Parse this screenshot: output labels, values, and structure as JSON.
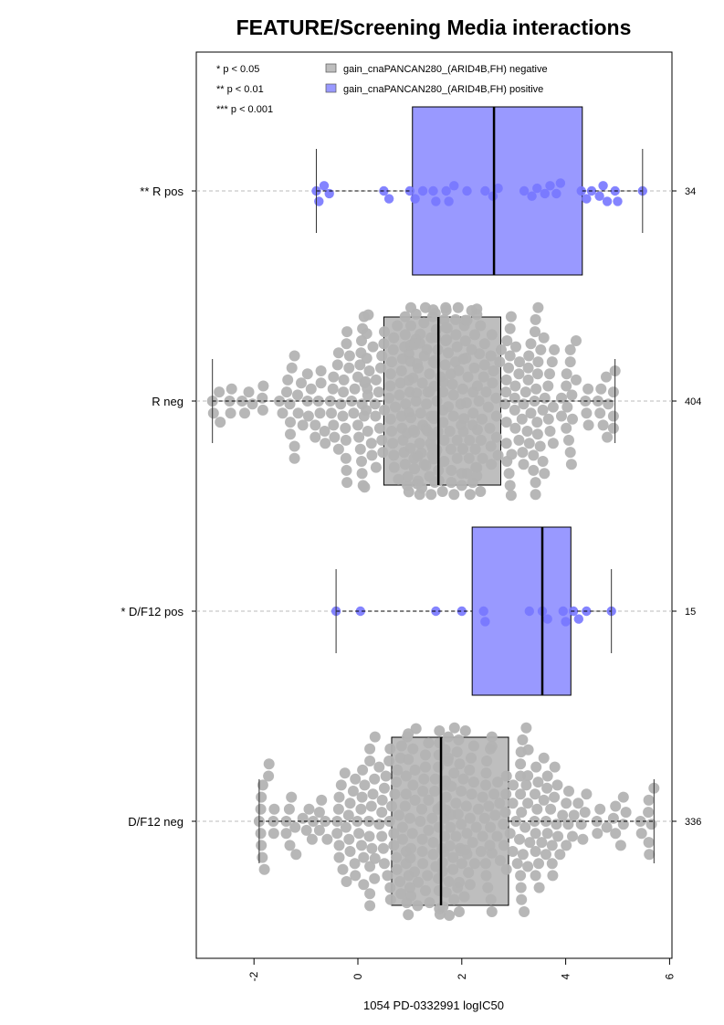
{
  "chart_data": {
    "type": "beeswarm-boxplot",
    "orientation": "horizontal",
    "title": "FEATURE/Screening Media interactions",
    "xlabel": "1054 PD-0332991 logIC50",
    "xlim": [
      -2.9,
      6.1
    ],
    "xticks": [
      -2,
      0,
      2,
      4,
      6
    ],
    "xtick_labels": [
      "-2",
      "0",
      "2",
      "4",
      "6"
    ],
    "colors": {
      "negative": "#bebebe",
      "positive": "#9999ff",
      "neg_point": "#b3b3b3",
      "pos_point": "#7777ff"
    },
    "significance_legend": [
      "* p < 0.05",
      "** p < 0.01",
      "*** p < 0.001"
    ],
    "legend": [
      {
        "label": "gain_cnaPANCAN280_(ARID4B,FH) negative",
        "color": "#bebebe"
      },
      {
        "label": "gain_cnaPANCAN280_(ARID4B,FH) positive",
        "color": "#9999ff"
      }
    ],
    "groups": [
      {
        "label": "** R pos",
        "n": "34",
        "kind": "positive",
        "stats": {
          "whisker_low": -0.8,
          "q1": 1.05,
          "median": 2.62,
          "q3": 4.32,
          "whisker_high": 5.48
        },
        "points": [
          -0.8,
          -0.75,
          -0.65,
          -0.55,
          0.5,
          0.6,
          1.0,
          1.1,
          1.25,
          1.45,
          1.5,
          1.7,
          1.75,
          1.85,
          2.1,
          2.45,
          2.6,
          2.7,
          3.2,
          3.35,
          3.45,
          3.6,
          3.7,
          3.82,
          3.9,
          4.3,
          4.4,
          4.5,
          4.65,
          4.72,
          4.8,
          4.95,
          5.0,
          5.48
        ]
      },
      {
        "label": "R neg",
        "n": "404",
        "kind": "negative",
        "stats": {
          "whisker_low": -2.8,
          "q1": 0.5,
          "median": 1.55,
          "q3": 2.75,
          "whisker_high": 4.95
        },
        "box_height_ratio": 0.67
      },
      {
        "label": "* D/F12 pos",
        "n": "15",
        "kind": "positive",
        "stats": {
          "whisker_low": -0.42,
          "q1": 2.2,
          "median": 3.55,
          "q3": 4.1,
          "whisker_high": 4.88
        },
        "points": [
          -0.42,
          0.05,
          1.5,
          2.0,
          2.42,
          2.45,
          3.3,
          3.55,
          3.65,
          3.95,
          4.0,
          4.15,
          4.25,
          4.4,
          4.88
        ]
      },
      {
        "label": "D/F12 neg",
        "n": "336",
        "kind": "negative",
        "stats": {
          "whisker_low": -1.9,
          "q1": 0.65,
          "median": 1.6,
          "q3": 2.9,
          "whisker_high": 5.7
        },
        "box_height_ratio": 0.67
      }
    ]
  }
}
